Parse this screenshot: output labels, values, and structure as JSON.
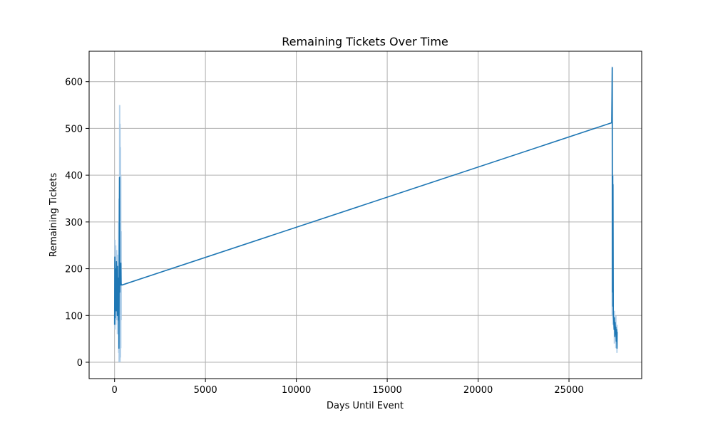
{
  "chart_data": {
    "type": "line",
    "title": "Remaining Tickets Over Time",
    "xlabel": "Days Until Event",
    "ylabel": "Remaining Tickets",
    "xlim": [
      -1400,
      29000
    ],
    "ylim": [
      -35,
      665
    ],
    "xticks": [
      0,
      5000,
      10000,
      15000,
      20000,
      25000
    ],
    "yticks": [
      0,
      100,
      200,
      300,
      400,
      500,
      600
    ],
    "grid": true,
    "colors": {
      "line": "#1f77b4",
      "band": "#a6c8e6"
    },
    "series": [
      {
        "name": "",
        "points": [
          [
            0,
            80
          ],
          [
            15,
            225
          ],
          [
            30,
            95
          ],
          [
            45,
            200
          ],
          [
            60,
            120
          ],
          [
            75,
            190
          ],
          [
            90,
            110
          ],
          [
            105,
            215
          ],
          [
            120,
            130
          ],
          [
            135,
            185
          ],
          [
            150,
            100
          ],
          [
            165,
            205
          ],
          [
            180,
            125
          ],
          [
            195,
            175
          ],
          [
            210,
            90
          ],
          [
            225,
            180
          ],
          [
            240,
            30
          ],
          [
            255,
            200
          ],
          [
            270,
            395
          ],
          [
            285,
            150
          ],
          [
            300,
            210
          ],
          [
            315,
            175
          ],
          [
            330,
            165
          ],
          [
            345,
            212
          ],
          [
            360,
            168
          ],
          [
            400,
            165
          ],
          [
            27350,
            512
          ],
          [
            27380,
            630
          ],
          [
            27390,
            150
          ],
          [
            27400,
            398
          ],
          [
            27410,
            120
          ],
          [
            27420,
            380
          ],
          [
            27440,
            100
          ],
          [
            27460,
            90
          ],
          [
            27480,
            70
          ],
          [
            27500,
            95
          ],
          [
            27520,
            55
          ],
          [
            27540,
            85
          ],
          [
            27560,
            60
          ],
          [
            27580,
            75
          ],
          [
            27600,
            45
          ],
          [
            27620,
            70
          ],
          [
            27640,
            30
          ],
          [
            27650,
            65
          ]
        ],
        "band_spikes": [
          [
            20,
            70,
            262
          ],
          [
            60,
            80,
            250
          ],
          [
            110,
            90,
            240
          ],
          [
            160,
            60,
            230
          ],
          [
            230,
            20,
            300
          ],
          [
            250,
            0,
            350
          ],
          [
            280,
            5,
            550
          ],
          [
            300,
            0,
            510
          ],
          [
            320,
            10,
            460
          ],
          [
            340,
            30,
            400
          ],
          [
            360,
            90,
            280
          ],
          [
            27380,
            100,
            632
          ],
          [
            27420,
            80,
            400
          ],
          [
            27500,
            40,
            110
          ],
          [
            27580,
            30,
            100
          ],
          [
            27640,
            20,
            80
          ]
        ]
      }
    ]
  }
}
